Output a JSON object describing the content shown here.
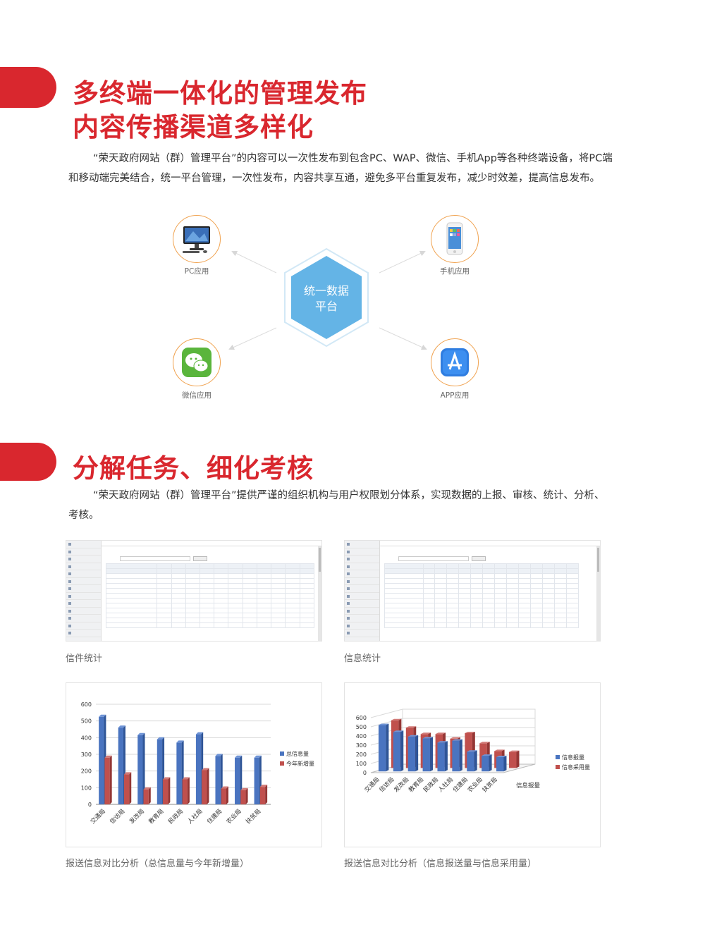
{
  "section1": {
    "heading_line1": "多终端一体化的管理发布",
    "heading_line2": "内容传播渠道多样化",
    "para_line1": "“荣天政府网站（群）管理平台”的内容可以一次性发布到包含PC、WAP、微信、手机App等各种终端设备，将PC端",
    "para_line2": "和移动端完美结合，统一平台管理，一次性发布，内容共享互通，避免多平台重复发布，减少时效差，提高信息发布。"
  },
  "diagram": {
    "center_line1": "统一数据",
    "center_line2": "平台",
    "nodes": [
      {
        "label": "PC应用",
        "icon": "desktop-computer-icon"
      },
      {
        "label": "手机应用",
        "icon": "smartphone-icon"
      },
      {
        "label": "微信应用",
        "icon": "wechat-icon"
      },
      {
        "label": "APP应用",
        "icon": "app-store-icon"
      }
    ],
    "colors": {
      "hexagon": "#64b4e6",
      "node_border": "#f0a24f",
      "arrow": "#d7d7d7"
    }
  },
  "section2": {
    "heading": "分解任务、细化考核",
    "para_line1": "“荣天政府网站（群）管理平台”提供严谨的组织机构与用户权限划分体系，实现数据的上报、审核、统计、分析、",
    "para_line2": "考核。"
  },
  "figures": {
    "letter_stats": {
      "caption": "信件统计"
    },
    "info_stats": {
      "caption": "信息统计"
    },
    "chart1": {
      "caption": "报送信息对比分析（总信息量与今年新增量）"
    },
    "chart2": {
      "caption": "报送信息对比分析（信息报送量与信息采用量）"
    }
  },
  "chart_data": [
    {
      "type": "bar",
      "categories": [
        "交通局",
        "信访局",
        "发改局",
        "教育局",
        "民政局",
        "人社局",
        "住建局",
        "农业局",
        "扶贫局"
      ],
      "series": [
        {
          "name": "总信息量",
          "values": [
            525,
            460,
            415,
            390,
            370,
            420,
            290,
            280,
            280
          ],
          "color": "#4a74c0"
        },
        {
          "name": "今年新增量",
          "values": [
            280,
            180,
            90,
            150,
            150,
            205,
            95,
            85,
            105
          ],
          "color": "#c0504d"
        }
      ],
      "ylim": [
        0,
        600
      ],
      "yticks": [
        0,
        100,
        200,
        300,
        400,
        500,
        600
      ],
      "legend": "right"
    },
    {
      "type": "bar",
      "subtype": "3d-clustered",
      "categories": [
        "交通局",
        "信访局",
        "发改局",
        "教育局",
        "民政局",
        "人社局",
        "住建局",
        "农业局",
        "扶贫局"
      ],
      "series": [
        {
          "name": "信息报量",
          "values": [
            505,
            430,
            380,
            360,
            315,
            335,
            215,
            170,
            155
          ],
          "color": "#4a74c0"
        },
        {
          "name": "信息采用量",
          "values": [
            520,
            440,
            370,
            370,
            320,
            380,
            270,
            185,
            175
          ],
          "color": "#c0504d"
        }
      ],
      "depth_axis_label": "信息报量",
      "ylim": [
        0,
        600
      ],
      "yticks": [
        0,
        100,
        200,
        300,
        400,
        500,
        600
      ],
      "legend": "right"
    }
  ]
}
